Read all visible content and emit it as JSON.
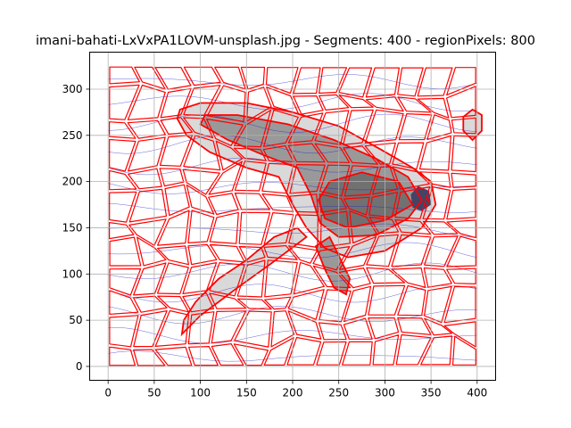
{
  "chart_data": {
    "type": "contour",
    "title": "imani-bahati-LxVxPA1LOVM-unsplash.jpg - Segments: 400 - regionPixels: 800",
    "xlabel": "",
    "ylabel": "",
    "xlim": [
      -20,
      420
    ],
    "ylim": [
      340,
      -15
    ],
    "y_inverted": true,
    "grid": true,
    "xticks": [
      0,
      50,
      100,
      150,
      200,
      250,
      300,
      350,
      400
    ],
    "yticks": [
      0,
      50,
      100,
      150,
      200,
      250,
      300
    ],
    "image_extent": {
      "x": [
        0,
        400
      ],
      "y": [
        0,
        325
      ]
    },
    "segment_grid": {
      "cols": 14,
      "rows": 12
    },
    "colors": {
      "segment_boundary": "#ff0000",
      "contour_line": "#2222cc",
      "image_light": "#d9d9d9",
      "image_mid": "#999999",
      "image_dark": "#666666",
      "grid": "#b0b0b0"
    },
    "shoe_outline": [
      [
        75,
        268
      ],
      [
        85,
        250
      ],
      [
        110,
        232
      ],
      [
        150,
        215
      ],
      [
        185,
        205
      ],
      [
        200,
        175
      ],
      [
        215,
        150
      ],
      [
        235,
        128
      ],
      [
        260,
        118
      ],
      [
        300,
        125
      ],
      [
        340,
        150
      ],
      [
        355,
        175
      ],
      [
        350,
        200
      ],
      [
        330,
        215
      ],
      [
        295,
        235
      ],
      [
        250,
        260
      ],
      [
        200,
        275
      ],
      [
        150,
        285
      ],
      [
        100,
        285
      ],
      [
        78,
        278
      ]
    ],
    "shoe_core": [
      [
        100,
        262
      ],
      [
        130,
        245
      ],
      [
        170,
        228
      ],
      [
        205,
        215
      ],
      [
        220,
        185
      ],
      [
        230,
        155
      ],
      [
        250,
        140
      ],
      [
        290,
        142
      ],
      [
        325,
        160
      ],
      [
        340,
        180
      ],
      [
        325,
        205
      ],
      [
        290,
        225
      ],
      [
        245,
        245
      ],
      [
        195,
        262
      ],
      [
        140,
        272
      ],
      [
        105,
        272
      ]
    ],
    "shoe_dark": [
      [
        235,
        160
      ],
      [
        260,
        150
      ],
      [
        300,
        158
      ],
      [
        330,
        175
      ],
      [
        315,
        200
      ],
      [
        275,
        210
      ],
      [
        240,
        200
      ],
      [
        228,
        180
      ]
    ],
    "strap_outline": [
      [
        80,
        35
      ],
      [
        100,
        55
      ],
      [
        140,
        85
      ],
      [
        175,
        110
      ],
      [
        195,
        125
      ],
      [
        215,
        140
      ],
      [
        205,
        150
      ],
      [
        180,
        140
      ],
      [
        150,
        115
      ],
      [
        120,
        95
      ],
      [
        95,
        70
      ],
      [
        82,
        50
      ]
    ],
    "heel_tab": [
      [
        225,
        130
      ],
      [
        235,
        105
      ],
      [
        245,
        85
      ],
      [
        258,
        78
      ],
      [
        262,
        95
      ],
      [
        250,
        120
      ],
      [
        240,
        140
      ]
    ],
    "side_blob": [
      [
        395,
        245
      ],
      [
        405,
        255
      ],
      [
        405,
        272
      ],
      [
        395,
        278
      ],
      [
        385,
        270
      ],
      [
        385,
        255
      ]
    ],
    "dark_heel_spot": [
      [
        330,
        172
      ],
      [
        340,
        168
      ],
      [
        350,
        175
      ],
      [
        348,
        190
      ],
      [
        336,
        195
      ],
      [
        328,
        186
      ]
    ]
  }
}
